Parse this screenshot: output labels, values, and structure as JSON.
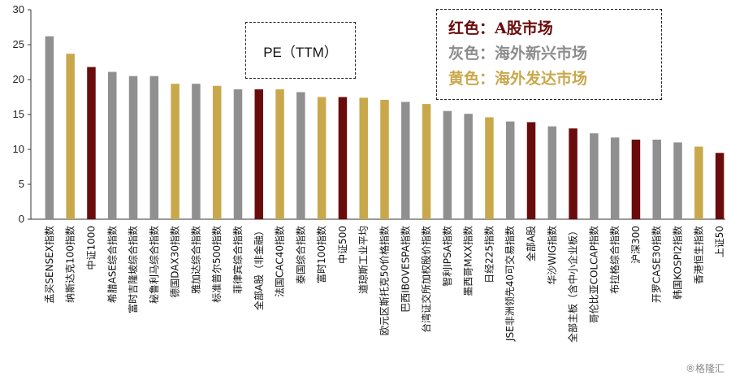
{
  "chart_data": {
    "type": "bar",
    "title": "",
    "xlabel": "",
    "ylabel": "",
    "ylim": [
      0,
      30
    ],
    "yticks": [
      0,
      5,
      10,
      15,
      20,
      25,
      30
    ],
    "grid": false,
    "categories": [
      "孟买SENSEX指数",
      "纳斯达克100指数",
      "中证1000",
      "希腊ASE综合指数",
      "富时吉隆坡综合指数",
      "秘鲁利马综合指数",
      "德国DAX30指数",
      "雅加达综合指数",
      "标准普尔500指数",
      "菲律宾综合指数",
      "全部A股（非金融）",
      "法国CAC40指数",
      "泰国综合指数",
      "富时100指数",
      "中证500",
      "道琼斯工业平均",
      "欧元区斯托克50价格指数",
      "巴西IBOVESPA指数",
      "台湾证交所加权股价指数",
      "智利IPSA指数",
      "墨西哥MXX指数",
      "日经225指数",
      "JSE非洲领先40可交易指数",
      "全部A股",
      "华沙WIG指数",
      "全部主板（含中小企业板）",
      "哥伦比亚COLCAP指数",
      "布拉格综合指数",
      "沪深300",
      "开罗CASE30指数",
      "韩国KOSPI2指数",
      "香港恒生指数",
      "上证50"
    ],
    "values": [
      26.2,
      23.7,
      21.8,
      21.1,
      20.5,
      20.5,
      19.4,
      19.4,
      19.1,
      18.6,
      18.6,
      18.6,
      18.2,
      17.5,
      17.5,
      17.4,
      17.1,
      16.8,
      16.5,
      15.5,
      15.1,
      14.6,
      14.0,
      13.9,
      13.3,
      13.0,
      12.3,
      11.7,
      11.4,
      11.4,
      11.0,
      10.4,
      9.5
    ],
    "groups": [
      "gray",
      "gold",
      "red",
      "gray",
      "gray",
      "gray",
      "gold",
      "gray",
      "gold",
      "gray",
      "red",
      "gold",
      "gray",
      "gold",
      "red",
      "gold",
      "gold",
      "gray",
      "gold",
      "gray",
      "gray",
      "gold",
      "gray",
      "red",
      "gray",
      "red",
      "gray",
      "gray",
      "red",
      "gray",
      "gray",
      "gold",
      "red"
    ],
    "colors": {
      "red": "#6b0c0c",
      "gray": "#909090",
      "gold": "#c9a84c"
    }
  },
  "annotation": "PE（TTM）",
  "legend": [
    {
      "prefix": "红色：",
      "text": "A股市场",
      "color": "#6b0c0c"
    },
    {
      "prefix": "灰色：",
      "text": "海外新兴市场",
      "color": "#8c8c8c"
    },
    {
      "prefix": "黄色：",
      "text": "海外发达市场",
      "color": "#c9a84c"
    }
  ],
  "watermark": "®格隆汇"
}
